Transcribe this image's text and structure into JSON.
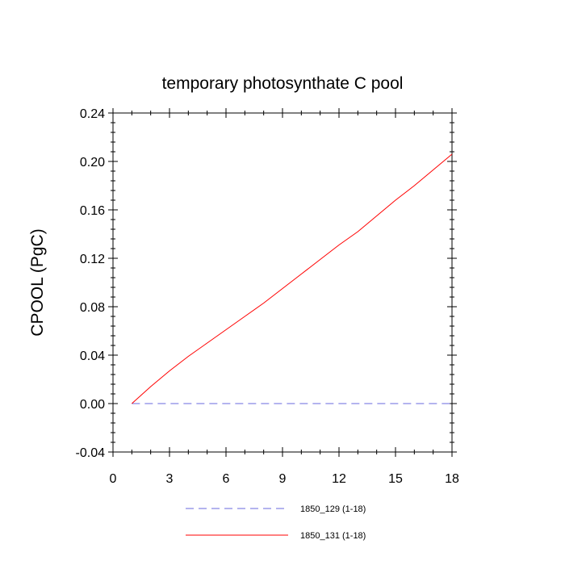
{
  "chart_data": {
    "type": "line",
    "title": "temporary photosynthate C pool",
    "xlabel": "",
    "ylabel": "CPOOL  (PgC)",
    "xlim": [
      0,
      18
    ],
    "ylim": [
      -0.04,
      0.24
    ],
    "xticks": [
      0,
      3,
      6,
      9,
      12,
      15,
      18
    ],
    "xtick_labels": [
      "0",
      "3",
      "6",
      "9",
      "12",
      "15",
      "18"
    ],
    "yticks": [
      -0.04,
      0.0,
      0.04,
      0.08,
      0.12,
      0.16,
      0.2,
      0.24
    ],
    "ytick_labels": [
      "-0.04",
      "0.00",
      "0.04",
      "0.08",
      "0.12",
      "0.16",
      "0.20",
      "0.24"
    ],
    "grid": false,
    "legend_position": "bottom",
    "series": [
      {
        "name": "1850_129 (1-18)",
        "color": "#6a6adf",
        "style": "dashed",
        "x": [
          1,
          2,
          3,
          4,
          5,
          6,
          7,
          8,
          9,
          10,
          11,
          12,
          13,
          14,
          15,
          16,
          17,
          18
        ],
        "y": [
          0,
          0,
          0,
          0,
          0,
          0,
          0,
          0,
          0,
          0,
          0,
          0,
          0,
          0,
          0,
          0,
          0,
          0
        ]
      },
      {
        "name": "1850_131 (1-18)",
        "color": "#ff0000",
        "style": "solid",
        "x": [
          1,
          2,
          3,
          4,
          5,
          6,
          7,
          8,
          9,
          10,
          11,
          12,
          13,
          14,
          15,
          16,
          17,
          18
        ],
        "y": [
          0.0,
          0.014,
          0.027,
          0.039,
          0.05,
          0.061,
          0.072,
          0.083,
          0.095,
          0.107,
          0.119,
          0.131,
          0.142,
          0.155,
          0.168,
          0.18,
          0.193,
          0.206
        ]
      }
    ]
  }
}
